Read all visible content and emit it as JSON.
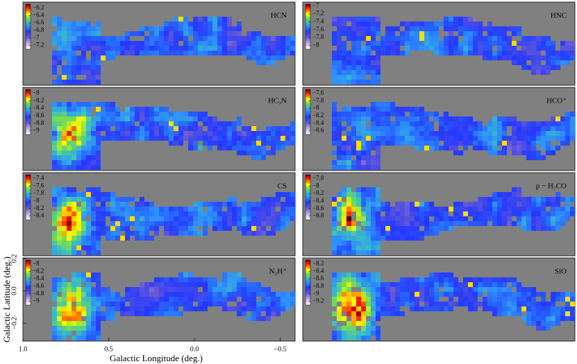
{
  "chart_data": {
    "type": "heatmap",
    "xlabel": "Galactic Longitude (deg.)",
    "ylabel": "Galactic Latitude (deg.)",
    "xlim": [
      1.0,
      -0.587
    ],
    "ylim": [
      -0.311,
      0.204
    ],
    "xticks": [
      {
        "value": 1,
        "label": "1.0"
      },
      0.5,
      {
        "value": 0,
        "label": "0.0"
      },
      {
        "value": -0.5,
        "label": "−0.5"
      }
    ],
    "yticks": [
      0.2,
      {
        "value": 0,
        "label": "0.0"
      },
      {
        "value": -0.2,
        "label": "−0.2"
      }
    ],
    "panels": [
      {
        "name": "HCN",
        "clim": [
          -7.3,
          -6.1
        ],
        "cticks": [
          {
            "value": -6.2,
            "label": "−6.2"
          },
          {
            "value": -6.4,
            "label": "−6.4"
          },
          {
            "value": -6.6,
            "label": "−6.6"
          },
          {
            "value": -6.8,
            "label": "−6.8"
          },
          {
            "value": -7,
            "label": "−7"
          },
          {
            "value": -7.2,
            "label": "−7.2"
          }
        ]
      },
      {
        "name": "HNC",
        "clim": [
          -8.1,
          -6.95
        ],
        "cticks": [
          {
            "value": -7,
            "label": "−7"
          },
          {
            "value": -7.2,
            "label": "−7.2"
          },
          {
            "value": -7.4,
            "label": "−7.4"
          },
          {
            "value": -7.6,
            "label": "−7.6"
          },
          {
            "value": -7.8,
            "label": "−7.8"
          },
          {
            "value": -8,
            "label": "−8"
          }
        ]
      },
      {
        "name": "HC₃N",
        "clim": [
          -9.1,
          -7.9
        ],
        "cticks": [
          {
            "value": -8,
            "label": "−8"
          },
          {
            "value": -8.2,
            "label": "−8.2"
          },
          {
            "value": -8.4,
            "label": "−8.4"
          },
          {
            "value": -8.6,
            "label": "−8.6"
          },
          {
            "value": -8.8,
            "label": "−8.8"
          },
          {
            "value": -9,
            "label": "−9"
          }
        ]
      },
      {
        "name": "HCO⁺",
        "clim": [
          -8.7,
          -7.5
        ],
        "cticks": [
          {
            "value": -7.6,
            "label": "−7.6"
          },
          {
            "value": -7.8,
            "label": "−7.8"
          },
          {
            "value": -8,
            "label": "−8"
          },
          {
            "value": -8.2,
            "label": "−8.2"
          },
          {
            "value": -8.4,
            "label": "−8.4"
          },
          {
            "value": -8.6,
            "label": "−8.6"
          }
        ]
      },
      {
        "name": "CS",
        "clim": [
          -8.5,
          -7.3
        ],
        "cticks": [
          {
            "value": -7.4,
            "label": "−7.4"
          },
          {
            "value": -7.6,
            "label": "−7.6"
          },
          {
            "value": -7.8,
            "label": "−7.8"
          },
          {
            "value": -8,
            "label": "−8"
          },
          {
            "value": -8.2,
            "label": "−8.2"
          },
          {
            "value": -8.4,
            "label": "−8.4"
          }
        ]
      },
      {
        "name": "p − H₂CO",
        "clim": [
          -8.9,
          -7.7
        ],
        "cticks": [
          {
            "value": -7.8,
            "label": "−7.8"
          },
          {
            "value": -8,
            "label": "−8"
          },
          {
            "value": -8.2,
            "label": "−8.2"
          },
          {
            "value": -8.4,
            "label": "−8.4"
          },
          {
            "value": -8.6,
            "label": "−8.6"
          },
          {
            "value": -8.8,
            "label": "−8.8"
          }
        ]
      },
      {
        "name": "N₂H⁺",
        "clim": [
          -9.1,
          -7.9
        ],
        "cticks": [
          {
            "value": -8,
            "label": "−8"
          },
          {
            "value": -8.2,
            "label": "−8.2"
          },
          {
            "value": -8.4,
            "label": "−8.4"
          },
          {
            "value": -8.6,
            "label": "−8.6"
          },
          {
            "value": -8.8,
            "label": "−8.8"
          },
          {
            "value": -9,
            "label": "−9"
          }
        ]
      },
      {
        "name": "SiO",
        "clim": [
          -9.3,
          -8.1
        ],
        "cticks": [
          {
            "value": -8.2,
            "label": "−8.2"
          },
          {
            "value": -8.4,
            "label": "−8.4"
          },
          {
            "value": -8.6,
            "label": "−8.6"
          },
          {
            "value": -8.8,
            "label": "−8.8"
          },
          {
            "value": -9,
            "label": "−9"
          },
          {
            "value": -9.2,
            "label": "−9.2"
          }
        ]
      }
    ]
  }
}
